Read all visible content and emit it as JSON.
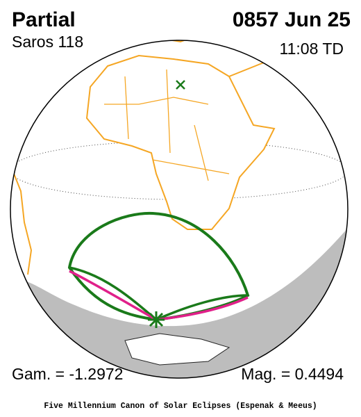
{
  "header": {
    "title": "Partial",
    "date": "0857 Jun 25",
    "saros": "Saros 118",
    "time": "11:08 TD"
  },
  "footer": {
    "gamma": "Gam. = -1.2972",
    "magnitude": "Mag. = 0.4494",
    "credit": "Five Millennium Canon of Solar Eclipses (Espenak & Meeus)"
  }
}
